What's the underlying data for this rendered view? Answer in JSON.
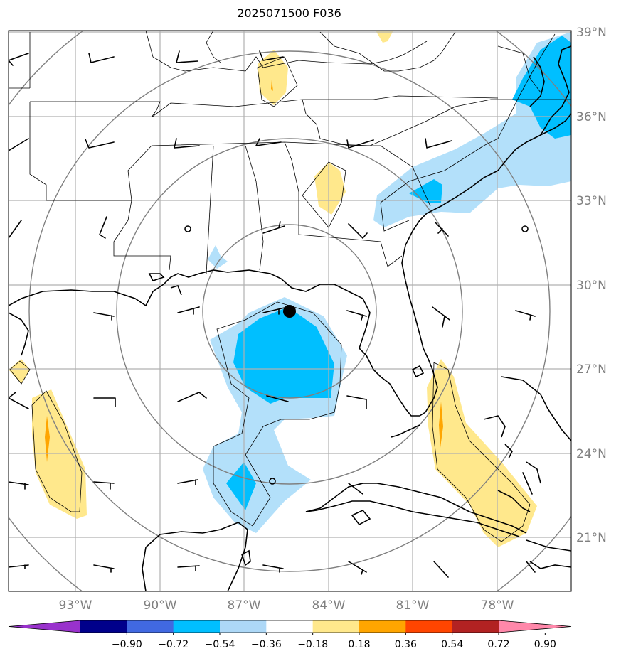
{
  "title": "2025071500 F036",
  "lat_labels": [
    "39°N",
    "36°N",
    "33°N",
    "30°N",
    "27°N",
    "24°N",
    "21°N"
  ],
  "lon_labels": [
    "93°W",
    "90°W",
    "87°W",
    "84°W",
    "81°W",
    "78°W"
  ],
  "colorbar": {
    "ticks": [
      "−0.90",
      "−0.72",
      "−0.54",
      "−0.36",
      "−0.18",
      "0.18",
      "0.36",
      "0.54",
      "0.72",
      "0.90"
    ],
    "colors": [
      "#9932cc",
      "#00008b",
      "#4169e1",
      "#00bfff",
      "#add8f7",
      "#ffffff",
      "#ffe88c",
      "#ffa500",
      "#ff4500",
      "#b22222",
      "#ff88aa"
    ]
  },
  "colors": {
    "light_blue": "#b3e0fa",
    "blue": "#00bfff",
    "yellow": "#ffe88c",
    "orange": "#ffa500",
    "grid": "#b0b0b0",
    "range_ring": "#808080"
  }
}
